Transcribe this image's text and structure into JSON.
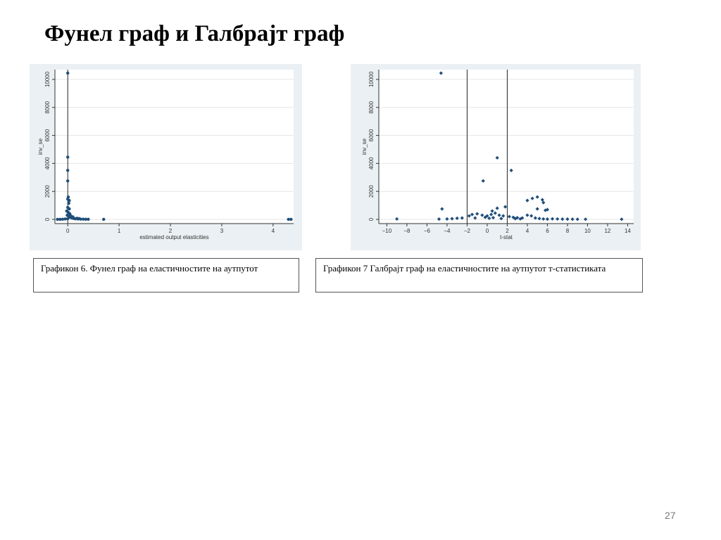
{
  "slide": {
    "title": "Фунел граф и Галбрајт граф",
    "page_number": "27"
  },
  "captions": [
    "Графикон 6. Фунел граф на еластичностите на аутпутот",
    "Графикон 7 Галбрајт граф на еластичностите на аутпутот т-статистиката"
  ],
  "colors": {
    "marker": "#1f4e79",
    "panel_background": "#eaf0f3",
    "plot_background": "#ffffff",
    "gridline": "#e6e6e6"
  },
  "chart_data": [
    {
      "type": "scatter",
      "title": "",
      "xlabel": "estimated output elasticities",
      "ylabel": "inv_se",
      "xlim": [
        -0.25,
        4.4
      ],
      "ylim": [
        -300,
        10700
      ],
      "x_ticks": [
        0,
        1,
        2,
        3,
        4
      ],
      "y_ticks": [
        0,
        2000,
        4000,
        6000,
        8000,
        10000
      ],
      "grid": true,
      "reference_line": {
        "x": 0
      },
      "points": [
        [
          0.0,
          10450
        ],
        [
          0.0,
          4450
        ],
        [
          0.0,
          3500
        ],
        [
          0.0,
          2750
        ],
        [
          0.01,
          1600
        ],
        [
          0.0,
          1450
        ],
        [
          0.03,
          1350
        ],
        [
          0.02,
          1150
        ],
        [
          0.0,
          850
        ],
        [
          0.03,
          750
        ],
        [
          -0.02,
          600
        ],
        [
          0.01,
          500
        ],
        [
          0.04,
          400
        ],
        [
          -0.01,
          300
        ],
        [
          0.02,
          200
        ],
        [
          0.05,
          150
        ],
        [
          0.08,
          100
        ],
        [
          0.12,
          60
        ],
        [
          0.0,
          50
        ],
        [
          0.15,
          40
        ],
        [
          0.2,
          30
        ],
        [
          0.25,
          20
        ],
        [
          0.3,
          15
        ],
        [
          0.35,
          10
        ],
        [
          0.4,
          8
        ],
        [
          -0.05,
          30
        ],
        [
          -0.1,
          10
        ],
        [
          -0.15,
          5
        ],
        [
          -0.2,
          3
        ],
        [
          0.7,
          5
        ],
        [
          4.3,
          3
        ],
        [
          4.35,
          2
        ],
        [
          0.06,
          250
        ],
        [
          0.1,
          180
        ],
        [
          0.18,
          80
        ],
        [
          0.22,
          60
        ]
      ]
    },
    {
      "type": "scatter",
      "title": "",
      "xlabel": "t-stat",
      "ylabel": "inv_se",
      "xlim": [
        -10.8,
        14.6
      ],
      "ylim": [
        -300,
        10700
      ],
      "x_ticks": [
        -10,
        -8,
        -6,
        -4,
        -2,
        0,
        2,
        4,
        6,
        8,
        10,
        12,
        14
      ],
      "y_ticks": [
        0,
        2000,
        4000,
        6000,
        8000,
        10000
      ],
      "grid": true,
      "reference_lines": [
        {
          "x": -2
        },
        {
          "x": 2
        }
      ],
      "points": [
        [
          -4.6,
          10450
        ],
        [
          1.0,
          4400
        ],
        [
          2.4,
          3500
        ],
        [
          -0.4,
          2750
        ],
        [
          5.0,
          1600
        ],
        [
          4.5,
          1500
        ],
        [
          5.5,
          1400
        ],
        [
          4.0,
          1350
        ],
        [
          5.6,
          1200
        ],
        [
          -4.5,
          750
        ],
        [
          5.0,
          750
        ],
        [
          6.0,
          700
        ],
        [
          5.8,
          650
        ],
        [
          1.8,
          900
        ],
        [
          1.0,
          800
        ],
        [
          0.5,
          600
        ],
        [
          -1.8,
          250
        ],
        [
          -1.5,
          350
        ],
        [
          -1.0,
          400
        ],
        [
          -0.5,
          300
        ],
        [
          0.0,
          250
        ],
        [
          0.4,
          350
        ],
        [
          0.8,
          450
        ],
        [
          1.2,
          300
        ],
        [
          1.6,
          250
        ],
        [
          2.2,
          200
        ],
        [
          2.6,
          150
        ],
        [
          3.0,
          120
        ],
        [
          3.5,
          100
        ],
        [
          4.0,
          300
        ],
        [
          4.4,
          250
        ],
        [
          4.8,
          100
        ],
        [
          -2.5,
          100
        ],
        [
          -3.0,
          80
        ],
        [
          -3.5,
          50
        ],
        [
          -4.0,
          30
        ],
        [
          -4.8,
          20
        ],
        [
          -9.0,
          30
        ],
        [
          6.5,
          40
        ],
        [
          7.0,
          30
        ],
        [
          7.5,
          20
        ],
        [
          8.0,
          20
        ],
        [
          8.5,
          15
        ],
        [
          9.0,
          10
        ],
        [
          9.8,
          10
        ],
        [
          13.4,
          10
        ],
        [
          -1.2,
          100
        ],
        [
          -0.2,
          150
        ],
        [
          0.2,
          80
        ],
        [
          0.6,
          120
        ],
        [
          1.4,
          60
        ],
        [
          2.8,
          50
        ],
        [
          3.3,
          40
        ],
        [
          5.2,
          60
        ],
        [
          5.6,
          30
        ],
        [
          6.0,
          20
        ]
      ]
    }
  ]
}
